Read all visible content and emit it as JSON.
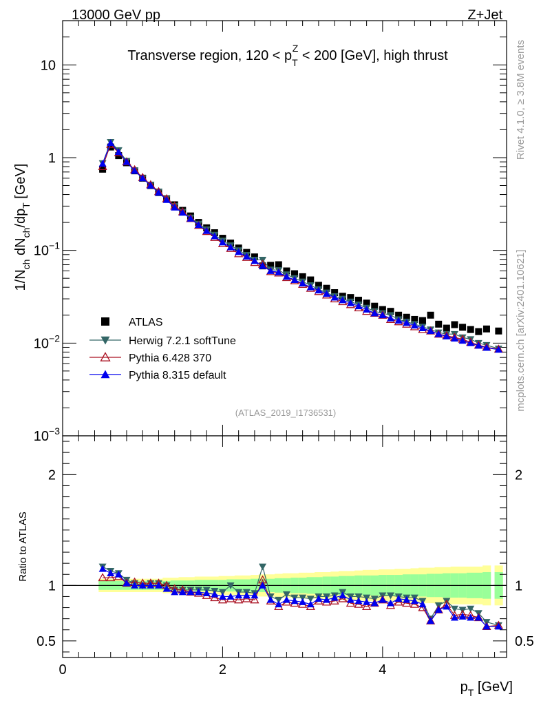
{
  "header": {
    "energy_label": "13000 GeV pp",
    "process_label": "Z+Jet"
  },
  "side_labels": {
    "rivet": "Rivet 4.1.0, ≥ 3.8M events",
    "mcplots": "mcplots.cern.ch [arXiv:2401.10621]"
  },
  "colors": {
    "atlas": "#000000",
    "herwig": "#336666",
    "pythia6": "#aa1122",
    "pythia8": "#0000ee",
    "band_inner": "#99ff99",
    "band_outer": "#ffff99"
  },
  "chart_data": [
    {
      "type": "scatter",
      "panel": "main",
      "title": "Transverse region, 120 < p_T^Z < 200 [GeV], high thrust",
      "title_parts": {
        "pre": "Transverse region, 120 < p",
        "sub": "T",
        "sup": "Z",
        "post": " < 200 [GeV], high thrust"
      },
      "ylabel": "1/N_ch dN_ch/dp_T [GeV]",
      "ylabel_parts": {
        "a": "1/N",
        "a_sub": "ch",
        "b": " dN",
        "b_sub": "ch",
        "c": "/dp",
        "c_sub": "T",
        "d": " [GeV]"
      },
      "yscale": "log",
      "ylim": [
        0.001,
        30
      ],
      "yticks": [
        {
          "value": 10,
          "base": "10",
          "exp": ""
        },
        {
          "value": 1,
          "base": "1",
          "exp": ""
        },
        {
          "value": 0.1,
          "base": "10",
          "exp": "−1"
        },
        {
          "value": 0.01,
          "base": "10",
          "exp": "−2"
        },
        {
          "value": 0.001,
          "base": "10",
          "exp": "−3"
        }
      ],
      "xlim": [
        0,
        5.55
      ],
      "watermark": "(ATLAS_2019_I1736531)",
      "x": [
        0.5,
        0.6,
        0.7,
        0.8,
        0.9,
        1.0,
        1.1,
        1.2,
        1.3,
        1.4,
        1.5,
        1.6,
        1.7,
        1.8,
        1.9,
        2.0,
        2.1,
        2.2,
        2.3,
        2.4,
        2.5,
        2.6,
        2.7,
        2.8,
        2.9,
        3.0,
        3.1,
        3.2,
        3.3,
        3.4,
        3.5,
        3.6,
        3.7,
        3.8,
        3.9,
        4.0,
        4.1,
        4.2,
        4.3,
        4.4,
        4.5,
        4.6,
        4.7,
        4.8,
        4.9,
        5.0,
        5.1,
        5.2,
        5.3,
        5.45
      ],
      "series": [
        {
          "name": "ATLAS",
          "marker": "square",
          "values": [
            0.75,
            1.3,
            1.05,
            0.88,
            0.72,
            0.6,
            0.5,
            0.42,
            0.36,
            0.31,
            0.27,
            0.235,
            0.2,
            0.175,
            0.155,
            0.135,
            0.12,
            0.106,
            0.095,
            0.085,
            0.068,
            0.069,
            0.07,
            0.06,
            0.056,
            0.052,
            0.048,
            0.042,
            0.039,
            0.035,
            0.032,
            0.031,
            0.029,
            0.027,
            0.025,
            0.023,
            0.022,
            0.02,
            0.019,
            0.018,
            0.0175,
            0.02,
            0.016,
            0.0145,
            0.0158,
            0.0148,
            0.014,
            0.0133,
            0.0142,
            0.0135
          ]
        },
        {
          "name": "Herwig 7.2.1 softTune",
          "marker": "triangle-down",
          "values": [
            0.87,
            1.47,
            1.2,
            0.92,
            0.73,
            0.6,
            0.51,
            0.43,
            0.36,
            0.3,
            0.26,
            0.225,
            0.193,
            0.168,
            0.147,
            0.127,
            0.113,
            0.1,
            0.089,
            0.079,
            0.079,
            0.062,
            0.061,
            0.055,
            0.05,
            0.046,
            0.042,
            0.038,
            0.035,
            0.032,
            0.03,
            0.028,
            0.026,
            0.024,
            0.022,
            0.021,
            0.02,
            0.018,
            0.017,
            0.016,
            0.015,
            0.014,
            0.013,
            0.0125,
            0.0125,
            0.0115,
            0.011,
            0.01,
            0.0095,
            0.0087
          ]
        },
        {
          "name": "Pythia 6.428 370",
          "marker": "triangle-open",
          "values": [
            0.8,
            1.39,
            1.13,
            0.9,
            0.74,
            0.61,
            0.51,
            0.43,
            0.36,
            0.3,
            0.26,
            0.22,
            0.186,
            0.16,
            0.138,
            0.118,
            0.105,
            0.092,
            0.084,
            0.074,
            0.071,
            0.059,
            0.057,
            0.051,
            0.047,
            0.043,
            0.039,
            0.036,
            0.033,
            0.03,
            0.028,
            0.026,
            0.024,
            0.022,
            0.021,
            0.02,
            0.018,
            0.017,
            0.016,
            0.015,
            0.014,
            0.0135,
            0.0125,
            0.012,
            0.0115,
            0.011,
            0.0102,
            0.0095,
            0.009,
            0.0086
          ]
        },
        {
          "name": "Pythia 8.315 default",
          "marker": "triangle-up",
          "values": [
            0.86,
            1.44,
            1.15,
            0.9,
            0.72,
            0.6,
            0.5,
            0.42,
            0.35,
            0.29,
            0.255,
            0.22,
            0.188,
            0.162,
            0.142,
            0.122,
            0.108,
            0.096,
            0.086,
            0.077,
            0.068,
            0.06,
            0.058,
            0.052,
            0.048,
            0.044,
            0.04,
            0.037,
            0.034,
            0.031,
            0.029,
            0.027,
            0.025,
            0.023,
            0.021,
            0.02,
            0.0185,
            0.0175,
            0.0165,
            0.0155,
            0.0145,
            0.0135,
            0.0125,
            0.0118,
            0.0112,
            0.0106,
            0.01,
            0.0094,
            0.0089,
            0.0085
          ]
        }
      ]
    },
    {
      "type": "scatter",
      "panel": "ratio",
      "ylabel": "Ratio to ATLAS",
      "ylim": [
        0.35,
        2.35
      ],
      "yticks": [
        {
          "value": 0.5,
          "label": "0.5"
        },
        {
          "value": 1,
          "label": "1"
        },
        {
          "value": 2,
          "label": "2"
        }
      ],
      "xlabel": "p_T [GeV]",
      "xlabel_parts": {
        "pre": "p",
        "sub": "T",
        "post": " [GeV]"
      },
      "xlim": [
        0,
        5.55
      ],
      "xticks": [
        {
          "value": 0,
          "label": "0"
        },
        {
          "value": 2,
          "label": "2"
        },
        {
          "value": 4,
          "label": "4"
        }
      ],
      "x": [
        0.5,
        0.6,
        0.7,
        0.8,
        0.9,
        1.0,
        1.1,
        1.2,
        1.3,
        1.4,
        1.5,
        1.6,
        1.7,
        1.8,
        1.9,
        2.0,
        2.1,
        2.2,
        2.3,
        2.4,
        2.5,
        2.6,
        2.7,
        2.8,
        2.9,
        3.0,
        3.1,
        3.2,
        3.3,
        3.4,
        3.5,
        3.6,
        3.7,
        3.8,
        3.9,
        4.0,
        4.1,
        4.2,
        4.3,
        4.4,
        4.5,
        4.6,
        4.7,
        4.8,
        4.9,
        5.0,
        5.1,
        5.2,
        5.3,
        5.45
      ],
      "band_inner": [
        0.04,
        0.04,
        0.04,
        0.04,
        0.04,
        0.04,
        0.04,
        0.04,
        0.04,
        0.045,
        0.045,
        0.045,
        0.05,
        0.05,
        0.05,
        0.05,
        0.055,
        0.055,
        0.055,
        0.06,
        0.06,
        0.06,
        0.065,
        0.065,
        0.07,
        0.07,
        0.075,
        0.075,
        0.08,
        0.08,
        0.085,
        0.085,
        0.09,
        0.09,
        0.09,
        0.095,
        0.095,
        0.095,
        0.1,
        0.1,
        0.1,
        0.105,
        0.105,
        0.11,
        0.11,
        0.11,
        0.115,
        0.115,
        0.12,
        0.12
      ],
      "band_outer": [
        0.06,
        0.06,
        0.06,
        0.06,
        0.06,
        0.06,
        0.06,
        0.06,
        0.07,
        0.07,
        0.075,
        0.075,
        0.08,
        0.08,
        0.08,
        0.085,
        0.085,
        0.09,
        0.09,
        0.095,
        0.1,
        0.1,
        0.105,
        0.11,
        0.11,
        0.115,
        0.115,
        0.12,
        0.12,
        0.125,
        0.13,
        0.13,
        0.135,
        0.14,
        0.14,
        0.145,
        0.145,
        0.15,
        0.15,
        0.155,
        0.16,
        0.16,
        0.165,
        0.165,
        0.17,
        0.17,
        0.17,
        0.17,
        0.18,
        0.18
      ],
      "series": [
        {
          "name": "Herwig 7.2.1 softTune",
          "marker": "triangle-down",
          "values": [
            1.17,
            1.13,
            1.11,
            1.05,
            1.02,
            1.0,
            1.02,
            1.02,
            1.0,
            0.96,
            0.96,
            0.96,
            0.96,
            0.96,
            0.95,
            0.94,
            1.0,
            0.94,
            0.94,
            0.93,
            1.17,
            0.9,
            0.87,
            0.92,
            0.89,
            0.89,
            0.88,
            0.9,
            0.9,
            0.91,
            0.94,
            0.9,
            0.9,
            0.89,
            0.88,
            0.91,
            0.91,
            0.9,
            0.89,
            0.89,
            0.86,
            0.7,
            0.82,
            0.86,
            0.79,
            0.78,
            0.79,
            0.75,
            0.67,
            0.64
          ]
        },
        {
          "name": "Pythia 6.428 370",
          "marker": "triangle-open",
          "values": [
            1.07,
            1.07,
            1.08,
            1.02,
            1.03,
            1.02,
            1.02,
            1.02,
            1.0,
            0.97,
            0.96,
            0.94,
            0.93,
            0.91,
            0.89,
            0.87,
            0.88,
            0.87,
            0.88,
            0.87,
            1.05,
            0.86,
            0.81,
            0.85,
            0.84,
            0.83,
            0.81,
            0.86,
            0.85,
            0.86,
            0.88,
            0.84,
            0.83,
            0.81,
            0.84,
            0.87,
            0.82,
            0.85,
            0.84,
            0.83,
            0.8,
            0.68,
            0.78,
            0.83,
            0.73,
            0.74,
            0.73,
            0.71,
            0.63,
            0.64
          ]
        },
        {
          "name": "Pythia 8.315 default",
          "marker": "triangle-up",
          "values": [
            1.15,
            1.11,
            1.1,
            1.02,
            1.0,
            1.0,
            1.0,
            1.0,
            0.97,
            0.94,
            0.94,
            0.94,
            0.94,
            0.93,
            0.92,
            0.9,
            0.9,
            0.91,
            0.91,
            0.91,
            1.0,
            0.87,
            0.83,
            0.87,
            0.86,
            0.85,
            0.83,
            0.88,
            0.87,
            0.89,
            0.91,
            0.87,
            0.86,
            0.85,
            0.84,
            0.87,
            0.84,
            0.88,
            0.87,
            0.86,
            0.83,
            0.68,
            0.78,
            0.81,
            0.71,
            0.72,
            0.71,
            0.71,
            0.63,
            0.63
          ]
        }
      ]
    }
  ]
}
